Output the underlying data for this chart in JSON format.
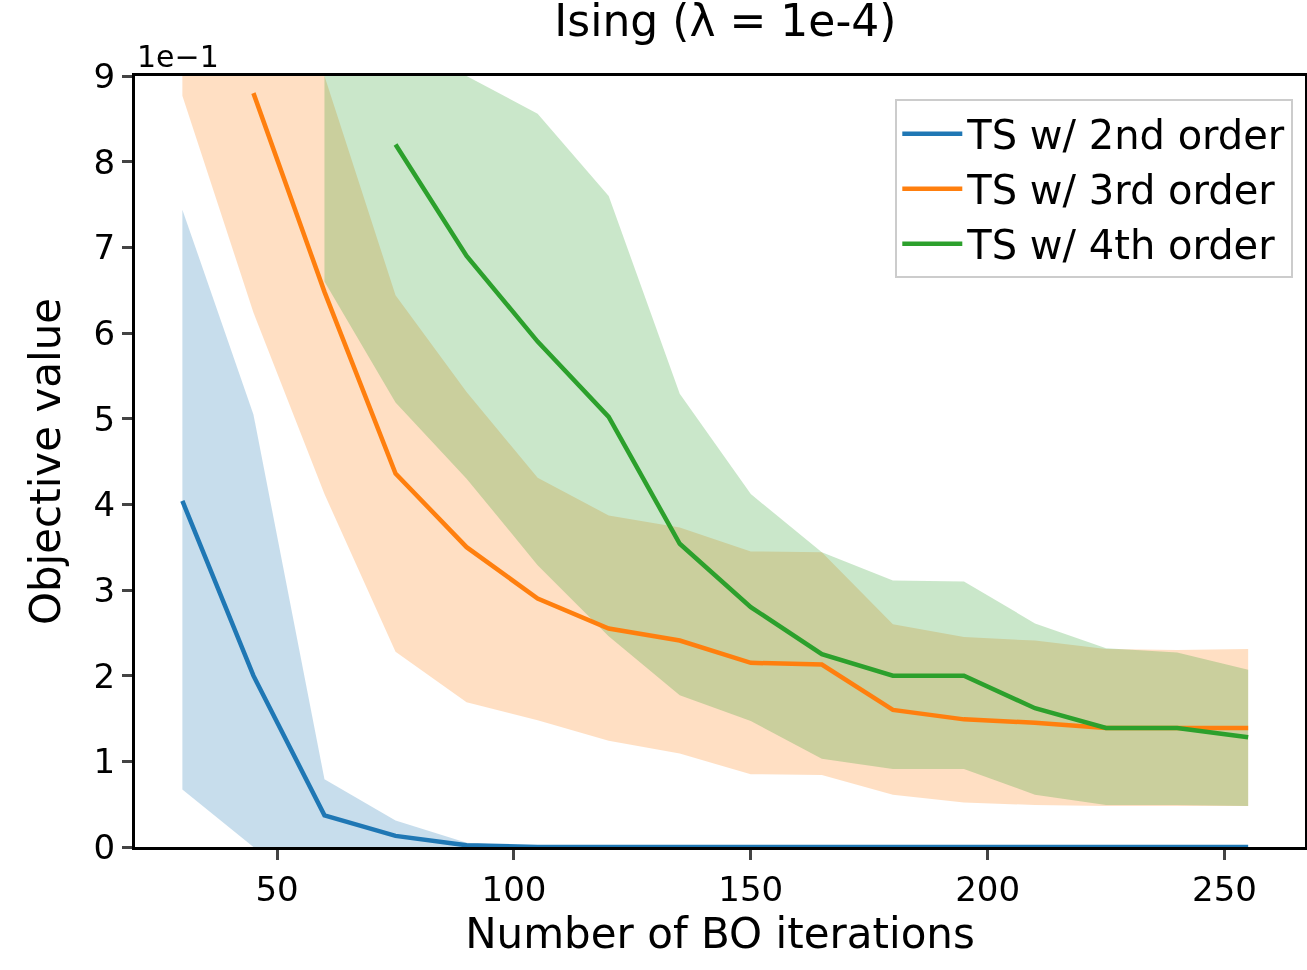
{
  "chart_data": {
    "type": "line",
    "title": "Ising (λ = 1e-4)",
    "xlabel": "Number of BO iterations",
    "ylabel": "Objective value",
    "annotations": [
      "1e−1"
    ],
    "xlim": [
      20,
      267
    ],
    "xticks": [
      50,
      100,
      150,
      200,
      250
    ],
    "ylim": [
      0,
      9
    ],
    "yticks": [
      0,
      1,
      2,
      3,
      4,
      5,
      6,
      7,
      8,
      9
    ],
    "grid": false,
    "legend": "top right",
    "marker": "none",
    "line_style": "solid",
    "series": [
      {
        "name": "TS w/ 2nd order",
        "color": "#1f77b4",
        "x": [
          30,
          45,
          60,
          75,
          90,
          105,
          120,
          135,
          150,
          165,
          180,
          195,
          210,
          225,
          240,
          255
        ],
        "values": [
          4.04,
          2.0,
          0.37,
          0.13,
          0.02,
          0,
          0,
          0,
          0,
          0,
          0,
          0,
          0,
          0,
          0,
          0
        ],
        "lower": [
          0.67,
          0,
          0,
          0,
          0,
          0,
          0,
          0,
          0,
          0,
          0,
          0,
          0,
          0,
          0,
          0
        ],
        "upper": [
          7.44,
          5.05,
          0.79,
          0.31,
          0.05,
          0,
          0,
          0,
          0,
          0,
          0,
          0,
          0,
          0,
          0,
          0
        ]
      },
      {
        "name": "TS w/ 3rd order",
        "color": "#ff7f0e",
        "x": [
          30,
          45,
          60,
          75,
          90,
          105,
          120,
          135,
          150,
          165,
          180,
          195,
          210,
          225,
          240,
          255
        ],
        "values": [
          null,
          8.8,
          6.48,
          4.36,
          3.5,
          2.9,
          2.55,
          2.41,
          2.15,
          2.13,
          1.6,
          1.49,
          1.45,
          1.39,
          1.39,
          1.39
        ],
        "lower": [
          8.77,
          6.24,
          4.12,
          2.28,
          1.69,
          1.48,
          1.24,
          1.09,
          0.85,
          0.84,
          0.61,
          0.52,
          0.49,
          0.48,
          0.48,
          0.48
        ],
        "upper": [
          9,
          9,
          9,
          6.44,
          5.31,
          4.31,
          3.87,
          3.73,
          3.45,
          3.44,
          2.6,
          2.45,
          2.41,
          2.31,
          2.3,
          2.31
        ]
      },
      {
        "name": "TS w/ 4th order",
        "color": "#2ca02c",
        "x": [
          60,
          75,
          90,
          105,
          120,
          135,
          150,
          165,
          180,
          195,
          210,
          225,
          240,
          255
        ],
        "values": [
          null,
          8.2,
          6.9,
          5.9,
          5.02,
          3.54,
          2.8,
          2.25,
          2.0,
          2.0,
          1.62,
          1.39,
          1.39,
          1.28
        ],
        "lower": [
          6.6,
          5.19,
          4.3,
          3.29,
          2.46,
          1.77,
          1.47,
          1.03,
          0.91,
          0.91,
          0.61,
          0.49,
          0.49,
          0.48
        ],
        "upper": [
          9,
          9,
          9,
          8.56,
          7.6,
          5.29,
          4.12,
          3.44,
          3.11,
          3.1,
          2.61,
          2.32,
          2.27,
          2.07
        ]
      }
    ]
  }
}
